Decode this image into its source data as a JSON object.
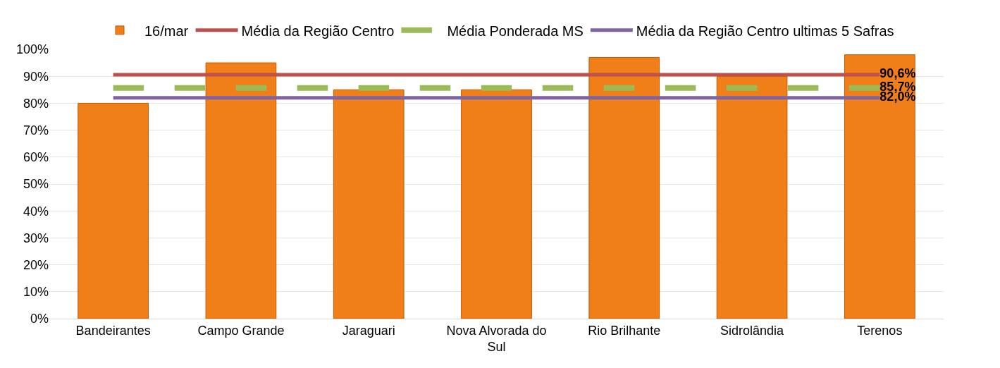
{
  "chart_data": {
    "type": "bar",
    "categories": [
      "Bandeirantes",
      "Campo Grande",
      "Jaraguari",
      "Nova Alvorada do Sul",
      "Rio Brilhante",
      "Sidrolândia",
      "Terenos"
    ],
    "series": [
      {
        "name": "16/mar",
        "color": "#f07f1a",
        "values": [
          80,
          95,
          85,
          85,
          97,
          90,
          98
        ]
      },
      {
        "name": "Média da Região Centro",
        "type": "line",
        "color": "#c0504d",
        "line_style": "solid",
        "values": [
          90.6,
          90.6,
          90.6,
          90.6,
          90.6,
          90.6,
          90.6
        ],
        "value_labels": [
          null,
          null,
          null,
          null,
          null,
          null,
          "90,6%"
        ]
      },
      {
        "name": "Média Ponderada MS",
        "type": "line",
        "color": "#9bbb59",
        "line_style": "dashed",
        "values": [
          85.7,
          85.7,
          85.7,
          85.7,
          85.7,
          85.7,
          85.7
        ],
        "value_labels": [
          null,
          null,
          null,
          null,
          null,
          null,
          "85,7%"
        ]
      },
      {
        "name": "Média da Região Centro ultimas 5 Safras",
        "type": "line",
        "color": "#8064a2",
        "line_style": "solid",
        "values": [
          82.0,
          82.0,
          82.0,
          82.0,
          82.0,
          82.0,
          82.0
        ],
        "value_labels": [
          null,
          null,
          null,
          null,
          null,
          null,
          "82,0%"
        ]
      }
    ],
    "ylim": [
      0,
      100
    ],
    "yticks": [
      {
        "value": 0,
        "label": "0%"
      },
      {
        "value": 10,
        "label": "10%"
      },
      {
        "value": 20,
        "label": "20%"
      },
      {
        "value": 30,
        "label": "30%"
      },
      {
        "value": 40,
        "label": "40%"
      },
      {
        "value": 50,
        "label": "50%"
      },
      {
        "value": 60,
        "label": "60%"
      },
      {
        "value": 70,
        "label": "70%"
      },
      {
        "value": 80,
        "label": "80%"
      },
      {
        "value": 90,
        "label": "90%"
      },
      {
        "value": 100,
        "label": "100%"
      }
    ],
    "grid": "y",
    "legend": "top",
    "marker": "none"
  }
}
